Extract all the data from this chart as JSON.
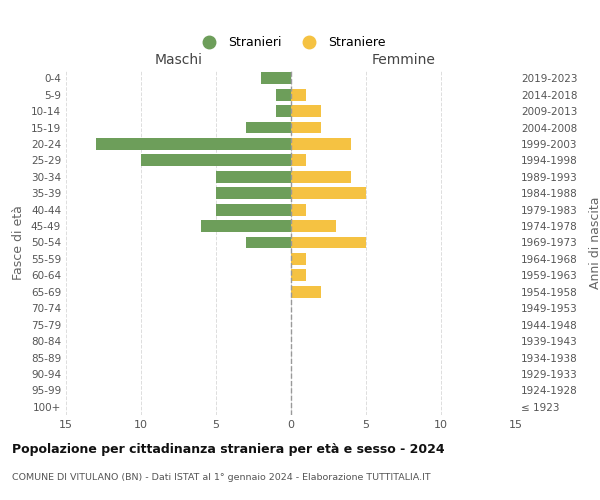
{
  "age_groups": [
    "100+",
    "95-99",
    "90-94",
    "85-89",
    "80-84",
    "75-79",
    "70-74",
    "65-69",
    "60-64",
    "55-59",
    "50-54",
    "45-49",
    "40-44",
    "35-39",
    "30-34",
    "25-29",
    "20-24",
    "15-19",
    "10-14",
    "5-9",
    "0-4"
  ],
  "birth_years": [
    "≤ 1923",
    "1924-1928",
    "1929-1933",
    "1934-1938",
    "1939-1943",
    "1944-1948",
    "1949-1953",
    "1954-1958",
    "1959-1963",
    "1964-1968",
    "1969-1973",
    "1974-1978",
    "1979-1983",
    "1984-1988",
    "1989-1993",
    "1994-1998",
    "1999-2003",
    "2004-2008",
    "2009-2013",
    "2014-2018",
    "2019-2023"
  ],
  "males": [
    0,
    0,
    0,
    0,
    0,
    0,
    0,
    0,
    0,
    0,
    3,
    6,
    5,
    5,
    5,
    10,
    13,
    3,
    1,
    1,
    2
  ],
  "females": [
    0,
    0,
    0,
    0,
    0,
    0,
    0,
    2,
    1,
    1,
    5,
    3,
    1,
    5,
    4,
    1,
    4,
    2,
    2,
    1,
    0
  ],
  "male_color": "#6d9e5a",
  "female_color": "#f5c242",
  "title": "Popolazione per cittadinanza straniera per età e sesso - 2024",
  "subtitle": "COMUNE DI VITULANO (BN) - Dati ISTAT al 1° gennaio 2024 - Elaborazione TUTTITALIA.IT",
  "legend_male": "Stranieri",
  "legend_female": "Straniere",
  "xlabel_left": "Maschi",
  "xlabel_right": "Femmine",
  "ylabel_left": "Fasce di età",
  "ylabel_right": "Anni di nascita",
  "xlim": 15,
  "background_color": "#ffffff",
  "grid_color": "#dddddd"
}
